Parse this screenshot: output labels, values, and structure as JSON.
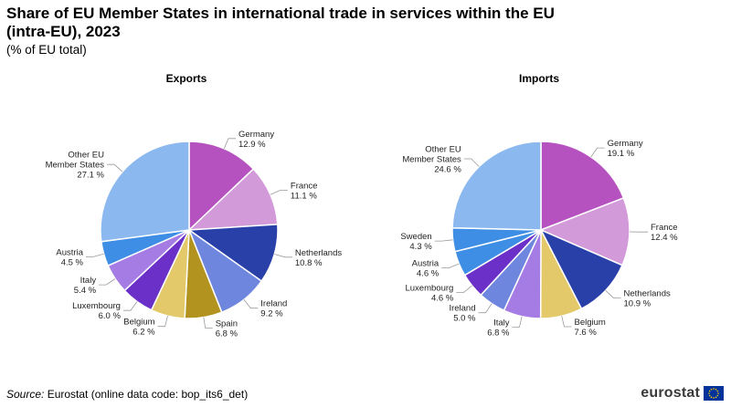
{
  "title": "Share of EU Member States in international trade in services within the EU (intra-EU), 2023",
  "subtitle": "(% of EU total)",
  "source_label": "Source:",
  "source_text": "Eurostat (online data code: bop_its6_det)",
  "brand": "eurostat",
  "colors": {
    "Germany": "#b652bf",
    "France": "#d39ad9",
    "Netherlands": "#2940a8",
    "Ireland": "#6f86de",
    "Spain": "#b39320",
    "Belgium": "#e4c96a",
    "Luxembourg": "#6b30c8",
    "Italy": "#a57ce4",
    "Austria": "#3d8ee4",
    "Sweden": "#3d8ee4",
    "Other EU Member States": "#8bb8ee",
    "slice_border": "#ffffff",
    "leader_line": "#9a9a9a",
    "flag_blue": "#003399",
    "flag_stars": "#ffcc00"
  },
  "chart_data": [
    {
      "type": "pie",
      "title": "Exports",
      "unit": "%",
      "slices": [
        {
          "label": "Germany",
          "value": 12.9,
          "value_label": "12.9 %"
        },
        {
          "label": "France",
          "value": 11.1,
          "value_label": "11.1 %"
        },
        {
          "label": "Netherlands",
          "value": 10.8,
          "value_label": "10.8 %"
        },
        {
          "label": "Ireland",
          "value": 9.2,
          "value_label": "9.2 %"
        },
        {
          "label": "Spain",
          "value": 6.8,
          "value_label": "6.8 %"
        },
        {
          "label": "Belgium",
          "value": 6.2,
          "value_label": "6.2 %"
        },
        {
          "label": "Luxembourg",
          "value": 6.0,
          "value_label": "6.0 %"
        },
        {
          "label": "Italy",
          "value": 5.4,
          "value_label": "5.4 %"
        },
        {
          "label": "Austria",
          "value": 4.5,
          "value_label": "4.5 %"
        },
        {
          "label": "Other EU Member States",
          "value": 27.1,
          "value_label": "27.1 %"
        }
      ]
    },
    {
      "type": "pie",
      "title": "Imports",
      "unit": "%",
      "slices": [
        {
          "label": "Germany",
          "value": 19.1,
          "value_label": "19.1 %"
        },
        {
          "label": "France",
          "value": 12.4,
          "value_label": "12.4 %"
        },
        {
          "label": "Netherlands",
          "value": 10.9,
          "value_label": "10.9 %"
        },
        {
          "label": "Belgium",
          "value": 7.6,
          "value_label": "7.6 %"
        },
        {
          "label": "Italy",
          "value": 6.8,
          "value_label": "6.8 %"
        },
        {
          "label": "Ireland",
          "value": 5.0,
          "value_label": "5.0 %"
        },
        {
          "label": "Luxembourg",
          "value": 4.6,
          "value_label": "4.6 %"
        },
        {
          "label": "Austria",
          "value": 4.6,
          "value_label": "4.6 %"
        },
        {
          "label": "Sweden",
          "value": 4.3,
          "value_label": "4.3 %"
        },
        {
          "label": "Other EU Member States",
          "value": 24.6,
          "value_label": "24.6 %"
        }
      ]
    }
  ]
}
